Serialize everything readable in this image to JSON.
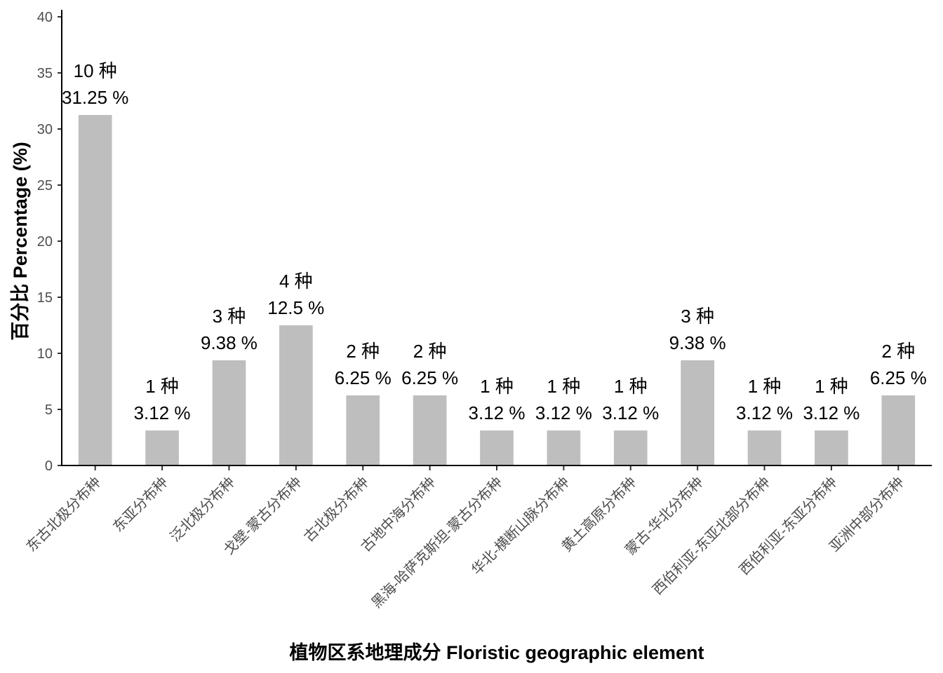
{
  "chart_data": {
    "type": "bar",
    "xlabel": "植物区系地理成分 Floristic geographic element",
    "ylabel": "百分比 Percentage (%)",
    "ylim": [
      0,
      40
    ],
    "yticks": [
      "0",
      "5",
      "10",
      "15",
      "20",
      "25",
      "30",
      "35",
      "40"
    ],
    "grid": false,
    "bar_color": "#bebebe",
    "categories": [
      "东古北极分布种",
      "东亚分布种",
      "泛北极分布种",
      "戈壁-蒙古分布种",
      "古北极分布种",
      "古地中海分布种",
      "黑海-哈萨克斯坦-蒙古分布种",
      "华北-横断山脉分布种",
      "黄土高原分布种",
      "蒙古-华北分布种",
      "西伯利亚-东亚北部分布种",
      "西伯利亚-东亚分布种",
      "亚洲中部分布种"
    ],
    "values": [
      31.25,
      3.12,
      9.38,
      12.5,
      6.25,
      6.25,
      3.12,
      3.12,
      3.12,
      9.38,
      3.12,
      3.12,
      6.25
    ],
    "count_labels": [
      "10 种",
      "1 种",
      "3 种",
      "4 种",
      "2 种",
      "2 种",
      "1 种",
      "1 种",
      "1 种",
      "3 种",
      "1 种",
      "1 种",
      "2 种"
    ],
    "percent_labels": [
      "31.25 %",
      "3.12 %",
      "9.38 %",
      "12.5 %",
      "6.25 %",
      "6.25 %",
      "3.12 %",
      "3.12 %",
      "3.12 %",
      "9.38 %",
      "3.12 %",
      "3.12 %",
      "6.25 %"
    ]
  }
}
